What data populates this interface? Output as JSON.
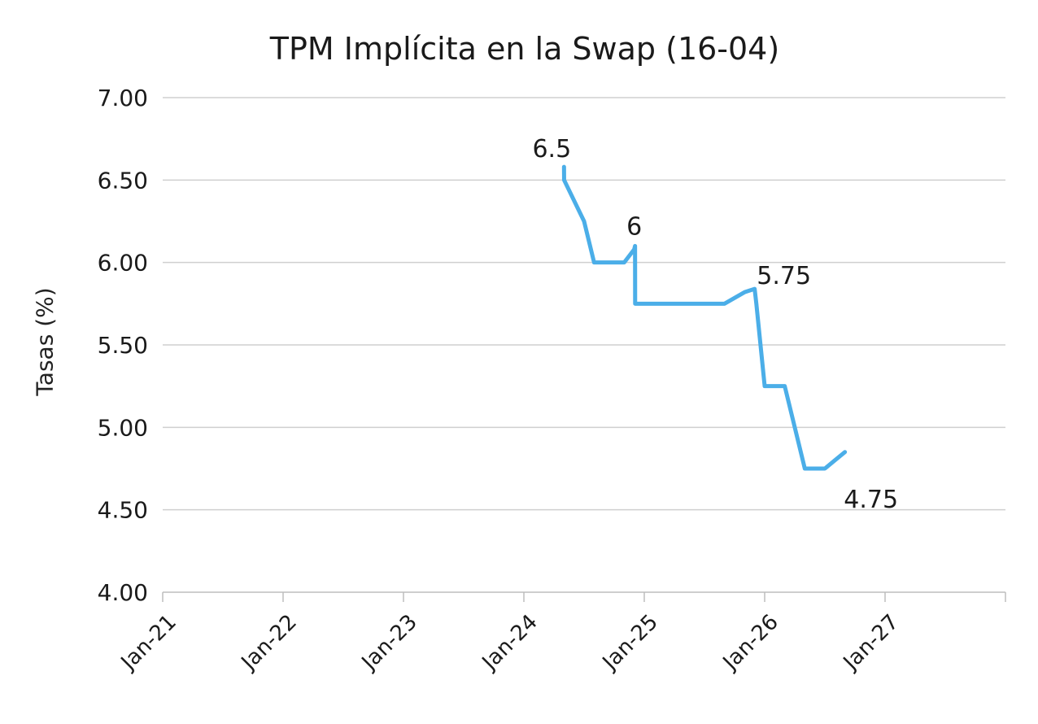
{
  "chart_data": {
    "type": "line",
    "title": "TPM Implícita en la Swap (16-04)",
    "xlabel": "",
    "ylabel": "Tasas (%)",
    "ylim": [
      4.0,
      7.0
    ],
    "yticks": [
      "4.00",
      "4.50",
      "5.00",
      "5.50",
      "6.00",
      "6.50",
      "7.00"
    ],
    "ytick_values": [
      4.0,
      4.5,
      5.0,
      5.5,
      6.0,
      6.5,
      7.0
    ],
    "xticks": [
      "Jan-21",
      "Jan-22",
      "Jan-23",
      "Jan-24",
      "Jan-25",
      "Jan-26",
      "Jan-27"
    ],
    "xtick_values": [
      "2021-01",
      "2022-01",
      "2023-01",
      "2024-01",
      "2025-01",
      "2026-01",
      "2027-01"
    ],
    "grid": "horizontal",
    "legend": "none",
    "line_color": "#4baee8",
    "series": [
      {
        "x": [
          "2024-05",
          "2024-05",
          "2024-07",
          "2024-08",
          "2024-09",
          "2024-10",
          "2024-11",
          "2024-12",
          "2024-12",
          "2024-12",
          "2025-01",
          "2025-03",
          "2025-05",
          "2025-07",
          "2025-09",
          "2025-11",
          "2025-12",
          "2025-12",
          "2026-01",
          "2026-02",
          "2026-03",
          "2026-04",
          "2026-05",
          "2026-07",
          "2026-08",
          "2026-09"
        ],
        "y": [
          6.58,
          6.5,
          6.25,
          6.0,
          6.0,
          6.0,
          6.0,
          6.08,
          6.1,
          5.75,
          5.75,
          5.75,
          5.75,
          5.75,
          5.75,
          5.82,
          5.84,
          5.75,
          5.25,
          5.25,
          5.25,
          5.0,
          4.75,
          4.75,
          4.8,
          4.85
        ]
      }
    ],
    "annotations": [
      {
        "text": "6.5",
        "x": "2024-05",
        "y": 6.58
      },
      {
        "text": "6",
        "x": "2024-12",
        "y": 6.1
      },
      {
        "text": "5.75",
        "x": "2025-12",
        "y": 5.84
      },
      {
        "text": "4.75",
        "x": "2026-09",
        "y": 4.75
      }
    ]
  }
}
